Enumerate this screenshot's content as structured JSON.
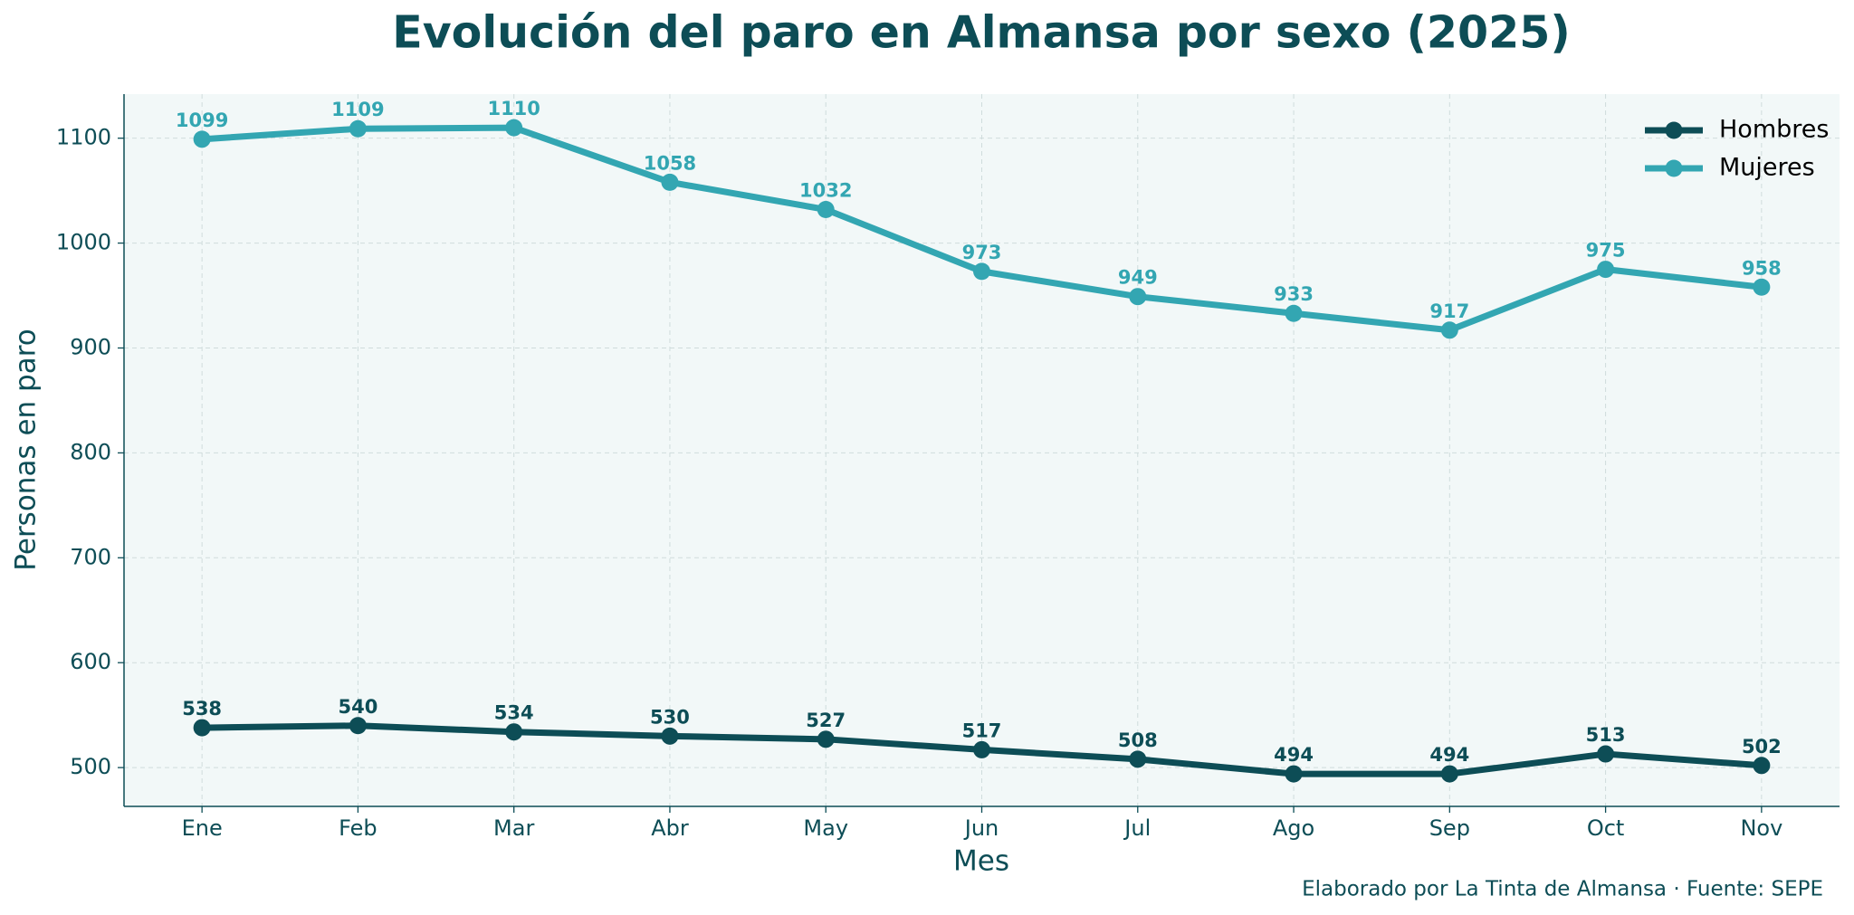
{
  "chart_data": {
    "type": "line",
    "title": "Evolución del paro en Almansa por sexo (2025)",
    "x_label": "Mes",
    "y_label": "Personas en paro",
    "source": "Elaborado por La Tinta de Almansa · Fuente: SEPE",
    "categories": [
      "Ene",
      "Feb",
      "Mar",
      "Abr",
      "May",
      "Jun",
      "Jul",
      "Ago",
      "Sep",
      "Oct",
      "Nov"
    ],
    "series": [
      {
        "name": "Hombres",
        "color": "#0d4d56",
        "values": [
          538,
          540,
          534,
          530,
          527,
          517,
          508,
          494,
          494,
          513,
          502
        ]
      },
      {
        "name": "Mujeres",
        "color": "#33a6b2",
        "values": [
          1099,
          1109,
          1110,
          1058,
          1032,
          973,
          949,
          933,
          917,
          975,
          958
        ]
      }
    ],
    "ylim": [
      463,
      1142
    ],
    "yticks": [
      500,
      600,
      700,
      800,
      900,
      1000,
      1100
    ],
    "grid": true,
    "legend": "upper right"
  }
}
